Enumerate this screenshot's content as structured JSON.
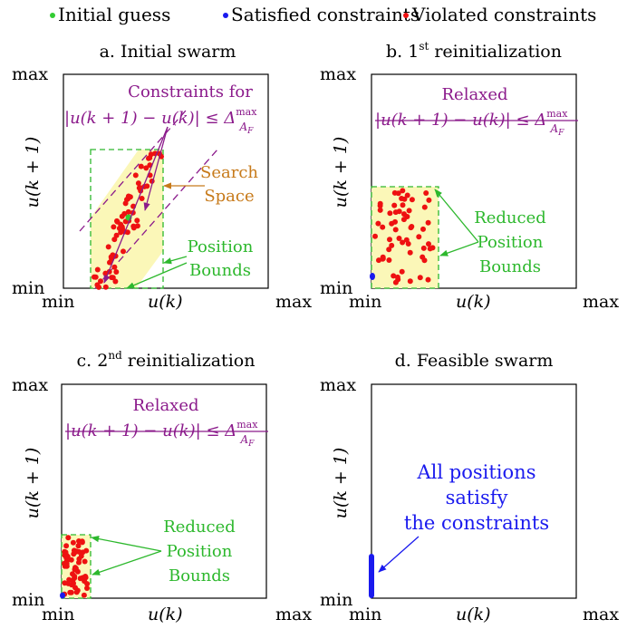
{
  "legend": {
    "items": [
      {
        "label": "Initial guess",
        "color": "#33cc33"
      },
      {
        "label": "Satisfied constraints",
        "color": "#1a1aee"
      },
      {
        "label": "Violated constraints",
        "color": "#ee1111"
      }
    ]
  },
  "colors": {
    "frame": "#000000",
    "purple": "#8b1a8b",
    "green": "#2db82d",
    "orange": "#c77a1a",
    "blue": "#1a1aee",
    "red": "#ee1111",
    "fill": "#fbf7b8"
  },
  "axes": {
    "min": "min",
    "max": "max",
    "xlabel": "u(k)",
    "ylabel": "u(k + 1)"
  },
  "panels": [
    {
      "title_prefix": "a. Initial swarm",
      "title_sup": "",
      "title_suffix": "",
      "constraint_label": "Constraints for",
      "constraint_formula": "|u(k + 1) − u(k)| ≤ Δ",
      "formula_sup": "max",
      "formula_sub": "A",
      "formula_subsub": "F",
      "search_label_1": "Search",
      "search_label_2": "Space",
      "bounds_label_1": "Position",
      "bounds_label_2": "Bounds"
    },
    {
      "title_prefix": "b. 1",
      "title_sup": "st",
      "title_suffix": " reinitialization",
      "relaxed_label": "Relaxed",
      "constraint_formula": "|u(k + 1) − u(k)| ≤ Δ",
      "formula_sup": "max",
      "formula_sub": "A",
      "formula_subsub": "F",
      "bounds_label_1": "Reduced",
      "bounds_label_2": "Position",
      "bounds_label_3": "Bounds"
    },
    {
      "title_prefix": "c. 2",
      "title_sup": "nd",
      "title_suffix": " reinitialization",
      "relaxed_label": "Relaxed",
      "constraint_formula": "|u(k + 1) − u(k)| ≤ Δ",
      "formula_sup": "max",
      "formula_sub": "A",
      "formula_subsub": "F",
      "bounds_label_1": "Reduced",
      "bounds_label_2": "Position",
      "bounds_label_3": "Bounds"
    },
    {
      "title_prefix": "d. Feasible swarm",
      "title_sup": "",
      "title_suffix": "",
      "note_1": "All positions",
      "note_2": "satisfy",
      "note_3": "the constraints"
    }
  ]
}
